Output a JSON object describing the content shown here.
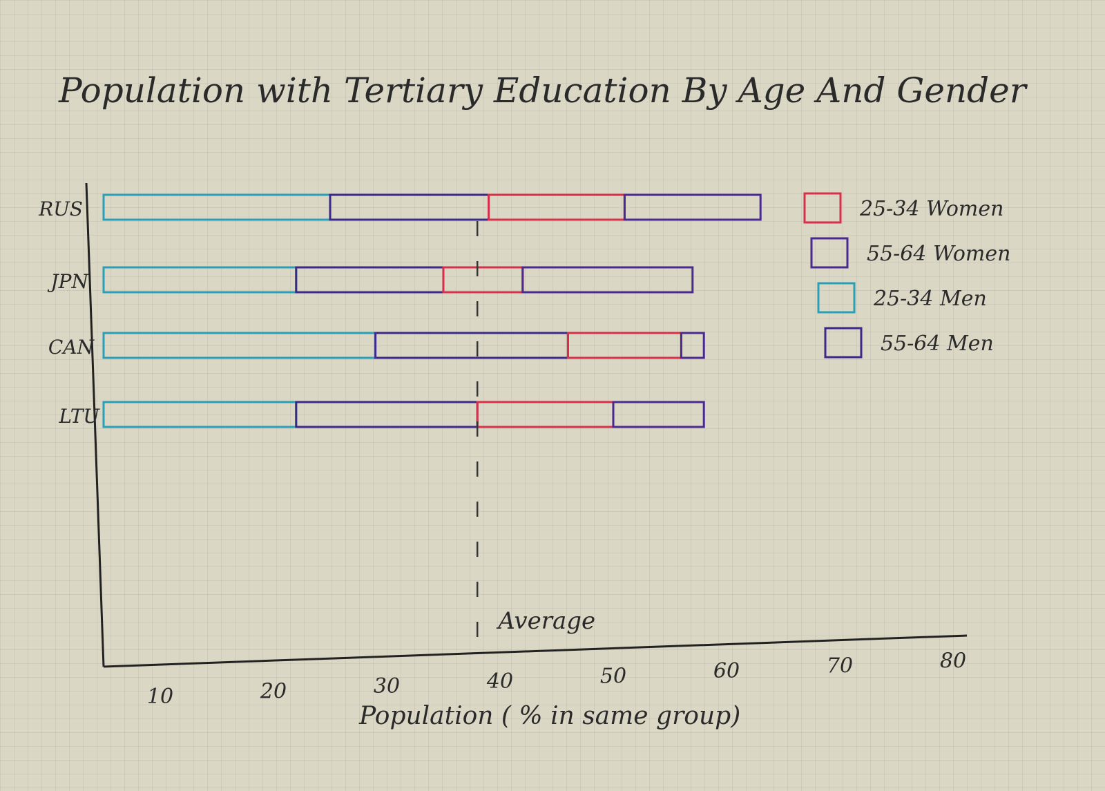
{
  "chart_data": {
    "type": "bar",
    "orientation": "horizontal",
    "stacked": true,
    "title": "Population with Tertiary Education By Age And Gender",
    "xlabel": "Population ( % in same group)",
    "ylabel": "",
    "xlim": [
      5,
      80
    ],
    "xticks": [
      {
        "value": 10,
        "label": "10"
      },
      {
        "value": 20,
        "label": "20"
      },
      {
        "value": 30,
        "label": "30"
      },
      {
        "value": 40,
        "label": "40"
      },
      {
        "value": 50,
        "label": "50"
      },
      {
        "value": 60,
        "label": "60"
      },
      {
        "value": 70,
        "label": "70"
      },
      {
        "value": 80,
        "label": "80"
      }
    ],
    "categories": [
      "RUS",
      "JPN",
      "CAN",
      "LTU"
    ],
    "series": [
      {
        "name": "25-34 Men",
        "color": "#2aa0b8",
        "values": [
          20,
          17,
          24,
          17
        ]
      },
      {
        "name": "55-64 Men",
        "color": "#3b2a8a",
        "values": [
          14,
          13,
          17,
          16
        ]
      },
      {
        "name": "25-34 Women",
        "color": "#d8304a",
        "values": [
          12,
          7,
          10,
          12
        ]
      },
      {
        "name": "55-64 Women",
        "color": "#4a2a92",
        "values": [
          12,
          15,
          2,
          8
        ]
      }
    ],
    "average": {
      "value": 38,
      "label": "Average"
    },
    "legend_position": "top-right",
    "grid": false
  }
}
